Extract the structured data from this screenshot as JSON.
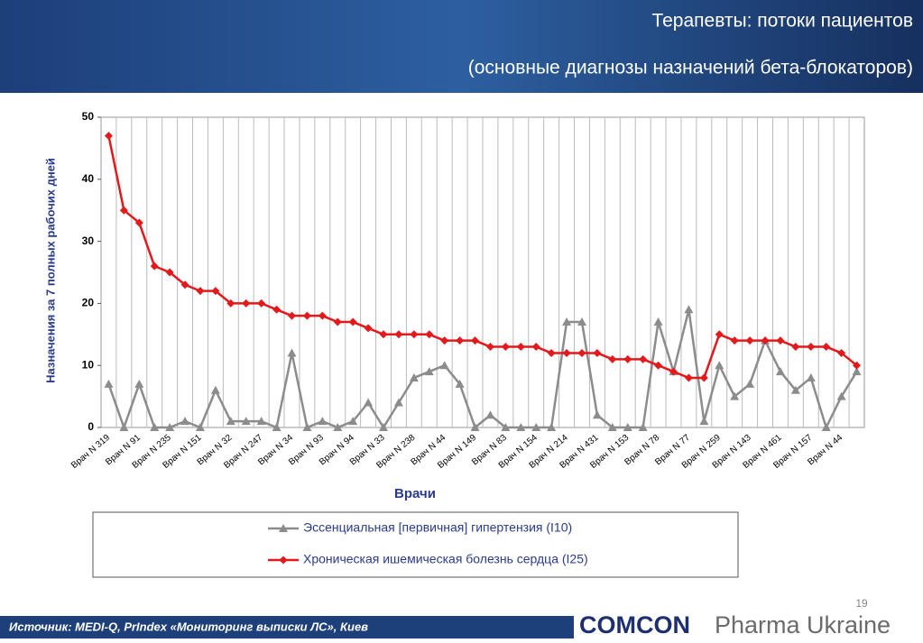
{
  "chart_data": {
    "type": "line",
    "title": "Терапевты: потоки пациентов",
    "subtitle": "(основные диагнозы назначений бета-блокаторов)",
    "y_label": "Назначения за 7 полных рабочих дней",
    "x_label": "Врачи",
    "categories": [
      "Врач N 319",
      null,
      "Врач N 91",
      null,
      "Врач N 235",
      null,
      "Врач N 151",
      null,
      "Врач N 32",
      null,
      "Врач N 247",
      null,
      "Врач N 34",
      null,
      "Врач N 93",
      null,
      "Врач N 94",
      null,
      "Врач N 33",
      null,
      "Врач N 238",
      null,
      "Врач N 44",
      null,
      "Врач N 149",
      null,
      "Врач N 83",
      null,
      "Врач N 154",
      null,
      "Врач N 214",
      null,
      "Врач N 431",
      null,
      "Врач N 153",
      null,
      "Врач N 78",
      null,
      "Врач N 77",
      null,
      "Врач N 259",
      null,
      "Врач N 143",
      null,
      "Врач N 461",
      null,
      "Врач N 157",
      null,
      "Врач N 44",
      null
    ],
    "series": [
      {
        "name": "Эссенциальная [первичная] гипертензия (I10)",
        "color": "#8c8c8c",
        "marker": "triangle",
        "values": [
          7,
          0,
          7,
          0,
          0,
          1,
          0,
          6,
          1,
          1,
          1,
          0,
          12,
          0,
          1,
          0,
          1,
          4,
          0,
          4,
          8,
          9,
          10,
          7,
          0,
          2,
          0,
          0,
          0,
          0,
          17,
          17,
          2,
          0,
          0,
          0,
          17,
          9,
          19,
          1,
          10,
          5,
          7,
          14,
          9,
          6,
          8,
          0,
          5,
          9
        ]
      },
      {
        "name": "Хроническая ишемическая болезнь сердца (I25)",
        "color": "#e3191c",
        "marker": "diamond",
        "values": [
          47,
          35,
          33,
          26,
          25,
          23,
          22,
          22,
          20,
          20,
          20,
          19,
          18,
          18,
          18,
          17,
          17,
          16,
          15,
          15,
          15,
          15,
          14,
          14,
          14,
          13,
          13,
          13,
          13,
          12,
          12,
          12,
          12,
          11,
          11,
          11,
          10,
          9,
          8,
          8,
          15,
          14,
          14,
          14,
          14,
          13,
          13,
          13,
          12,
          10
        ]
      }
    ],
    "ylim": [
      0,
      50
    ],
    "yticks": [
      0,
      10,
      20,
      30,
      40,
      50
    ],
    "grid": "x"
  },
  "source": "Источник: MEDI-Q, PrIndex «Мониторинг выписки ЛС», Киев",
  "page_number": "19",
  "logo": {
    "brand": "COMCON",
    "tagline": "Pharma Ukraine"
  }
}
